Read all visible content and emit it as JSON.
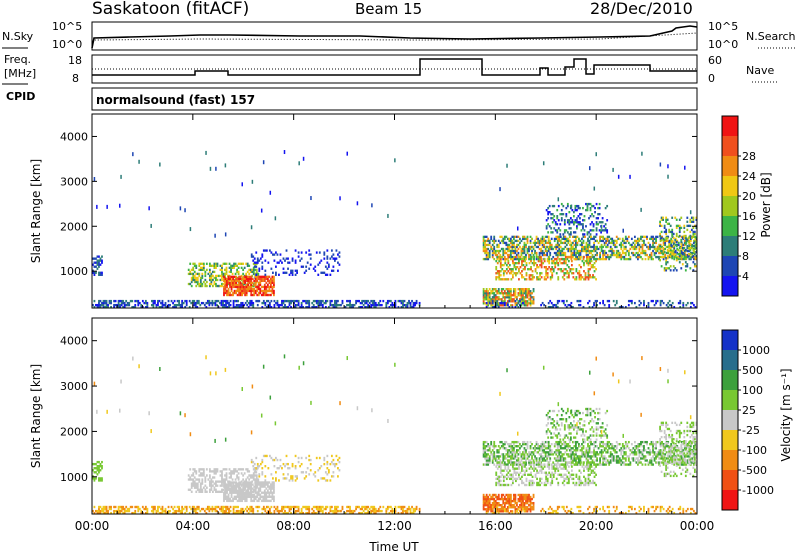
{
  "header": {
    "station": "Saskatoon (fitACF)",
    "beam": "Beam 15",
    "date": "28/Dec/2010"
  },
  "noise_panel": {
    "left_label": "N.Sky",
    "right_label": "N.Search",
    "left_ticks": [
      "10^5",
      "10^0"
    ],
    "right_ticks": [
      "10^5",
      "10^0"
    ]
  },
  "freq_panel": {
    "left_label_1": "Freq.",
    "left_label_2": "[MHz]",
    "cpid_label": "CPID",
    "right_label": "Nave",
    "left_ticks": [
      "18",
      "8"
    ],
    "right_ticks": [
      "60",
      "0"
    ]
  },
  "cpid_panel": {
    "text": "normalsound (fast) 157"
  },
  "colors": {
    "power_scale": [
      "#1414f0",
      "#1e46b4",
      "#2d7d78",
      "#3cb446",
      "#a0c81e",
      "#f0c814",
      "#f08c14",
      "#f0501e",
      "#f01414"
    ],
    "velocity_scale": [
      "#1432c8",
      "#286e8c",
      "#3ca03c",
      "#78c832",
      "#c8c8c8",
      "#f0c81e",
      "#f08c14",
      "#f05014",
      "#f01414"
    ]
  },
  "chart_data": [
    {
      "type": "heatmap",
      "title": "",
      "quantity": "Power",
      "ylabel": "Slant Range [km]",
      "xlabel": "Time UT",
      "x_ticks": [
        "00:00",
        "04:00",
        "08:00",
        "12:00",
        "16:00",
        "20:00",
        "00:00"
      ],
      "y_ticks": [
        "1000",
        "2000",
        "3000",
        "4000"
      ],
      "ylim": [
        180,
        4500
      ],
      "xlim_hours": [
        0,
        24
      ],
      "colorbar_label": "Power [dB]",
      "colorbar_ticks": [
        "4",
        "8",
        "12",
        "16",
        "20",
        "24",
        "28"
      ],
      "data_gap_hours": [
        13,
        15.5
      ]
    },
    {
      "type": "heatmap",
      "title": "",
      "quantity": "Velocity",
      "ylabel": "Slant Range [km]",
      "xlabel": "Time UT",
      "x_ticks": [
        "00:00",
        "04:00",
        "08:00",
        "12:00",
        "16:00",
        "20:00",
        "00:00"
      ],
      "y_ticks": [
        "1000",
        "2000",
        "3000",
        "4000"
      ],
      "ylim": [
        180,
        4500
      ],
      "xlim_hours": [
        0,
        24
      ],
      "colorbar_label": "Velocity [m s⁻¹]",
      "colorbar_ticks": [
        "1000",
        "500",
        "100",
        "25",
        "-25",
        "-100",
        "-500",
        "-1000"
      ],
      "data_gap_hours": [
        13,
        15.5
      ]
    }
  ]
}
